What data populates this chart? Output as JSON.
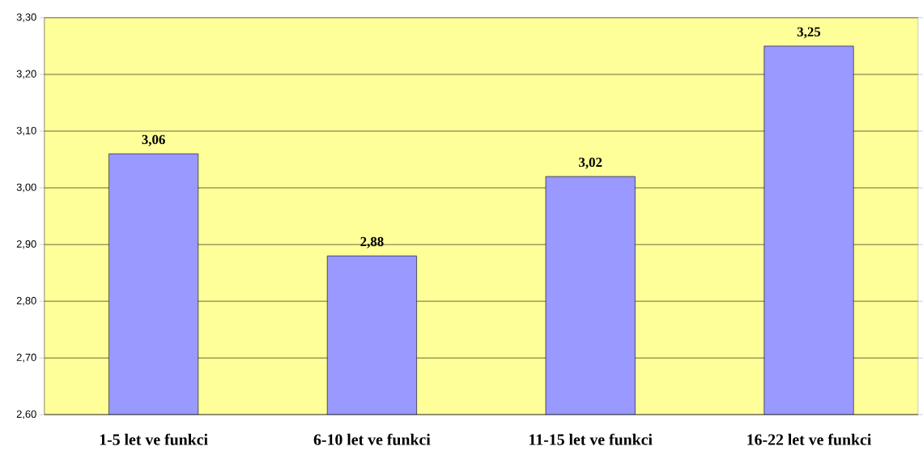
{
  "chart_data": {
    "type": "bar",
    "categories": [
      "1-5 let ve funkci",
      "6-10 let ve funkci",
      "11-15 let ve funkci",
      "16-22 let ve funkci"
    ],
    "values": [
      3.06,
      2.88,
      3.02,
      3.25
    ],
    "value_labels": [
      "3,06",
      "2,88",
      "3,02",
      "3,25"
    ],
    "color": "#9999ff",
    "ylim": [
      2.6,
      3.3
    ],
    "yticks": [
      {
        "value": 2.6,
        "label": "2,60"
      },
      {
        "value": 2.7,
        "label": "2,70"
      },
      {
        "value": 2.8,
        "label": "2,80"
      },
      {
        "value": 2.9,
        "label": "2,90"
      },
      {
        "value": 3.0,
        "label": "3,00"
      },
      {
        "value": 3.1,
        "label": "3,10"
      },
      {
        "value": 3.2,
        "label": "3,20"
      },
      {
        "value": 3.3,
        "label": "3,30"
      }
    ],
    "grid": "y"
  }
}
